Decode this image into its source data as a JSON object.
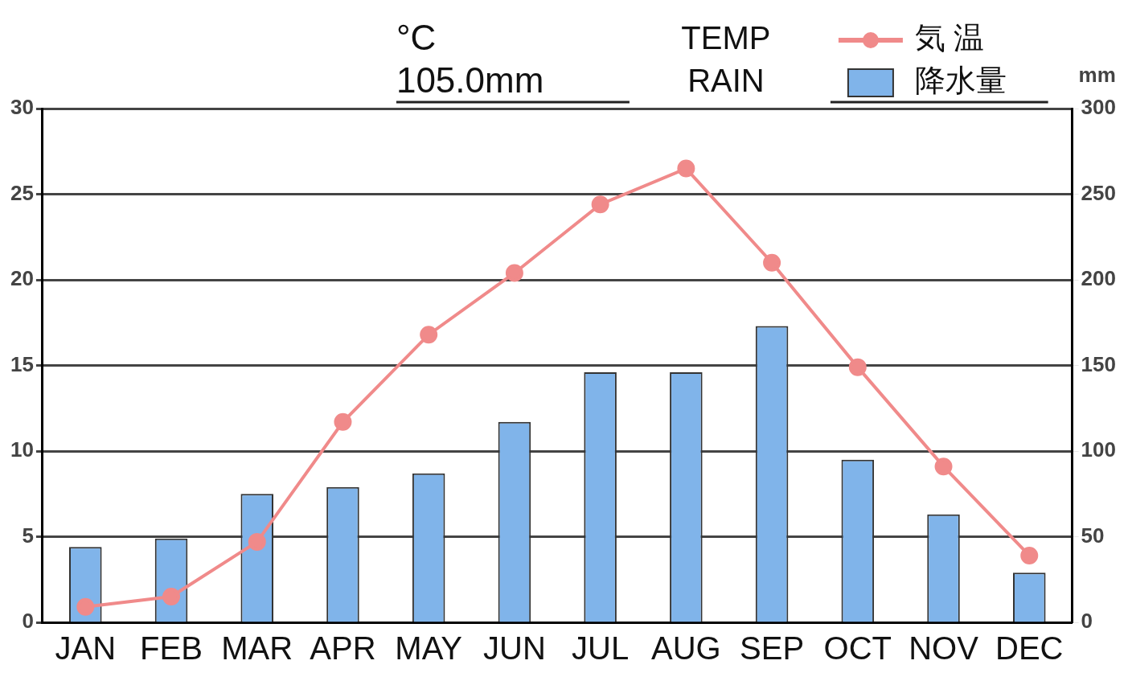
{
  "chart_data": {
    "type": "bar",
    "annotations": [
      "°C",
      "105.0mm",
      "TEMP",
      "RAIN"
    ],
    "categories": [
      "JAN",
      "FEB",
      "MAR",
      "APR",
      "MAY",
      "JUN",
      "JUL",
      "AUG",
      "SEP",
      "OCT",
      "NOV",
      "DEC"
    ],
    "series": [
      {
        "name": "気 温",
        "type": "line",
        "color": "#f08a8a",
        "marker": "circle",
        "line_style": "solid",
        "axis": "y",
        "values": [
          0.9,
          1.5,
          4.7,
          11.7,
          16.8,
          20.4,
          24.4,
          26.5,
          21.0,
          14.9,
          9.1,
          3.9
        ]
      },
      {
        "name": "降水量",
        "type": "bar",
        "color": "#80b4ea",
        "axis": "y2",
        "values": [
          44,
          49,
          75,
          79,
          87,
          117,
          146,
          146,
          173,
          95,
          63,
          29
        ]
      }
    ],
    "ylim": [
      0,
      30
    ],
    "yticks": [
      0,
      5,
      10,
      15,
      20,
      25,
      30
    ],
    "y2lim": [
      0,
      300
    ],
    "y2ticks": [
      0,
      50,
      100,
      150,
      200,
      250,
      300
    ],
    "y2label": "mm",
    "grid": true,
    "legend": "top-right"
  }
}
